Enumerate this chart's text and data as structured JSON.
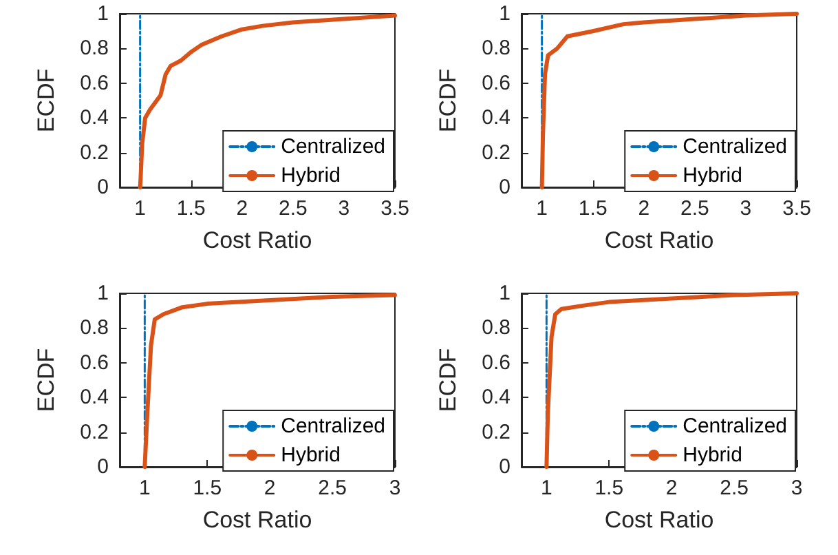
{
  "chart_data": [
    {
      "type": "line",
      "xlabel": "Cost Ratio",
      "ylabel": "ECDF",
      "xlim": [
        0.8,
        3.5
      ],
      "ylim": [
        0,
        1
      ],
      "xticks": [
        1,
        1.5,
        2,
        2.5,
        3,
        3.5
      ],
      "yticks": [
        0,
        0.2,
        0.4,
        0.6,
        0.8,
        1
      ],
      "legend": "bottom right",
      "grid": false,
      "series": [
        {
          "name": "Centralized",
          "color": "#0072bd",
          "line_style": "dashed",
          "x": [
            1,
            1
          ],
          "values": [
            0,
            1
          ]
        },
        {
          "name": "Hybrid",
          "color": "#d95319",
          "line_style": "solid",
          "x": [
            1,
            1.005,
            1.02,
            1.05,
            1.1,
            1.2,
            1.25,
            1.3,
            1.4,
            1.5,
            1.6,
            1.8,
            2,
            2.2,
            2.5,
            3,
            3.5
          ],
          "values": [
            0,
            0.05,
            0.25,
            0.4,
            0.45,
            0.53,
            0.65,
            0.7,
            0.73,
            0.78,
            0.82,
            0.87,
            0.91,
            0.93,
            0.95,
            0.97,
            0.99
          ]
        }
      ]
    },
    {
      "type": "line",
      "xlabel": "Cost Ratio",
      "ylabel": "ECDF",
      "xlim": [
        0.8,
        3.5
      ],
      "ylim": [
        0,
        1
      ],
      "xticks": [
        1,
        1.5,
        2,
        2.5,
        3,
        3.5
      ],
      "yticks": [
        0,
        0.2,
        0.4,
        0.6,
        0.8,
        1
      ],
      "legend": "bottom right",
      "grid": false,
      "series": [
        {
          "name": "Centralized",
          "color": "#0072bd",
          "line_style": "dashed",
          "x": [
            1,
            1
          ],
          "values": [
            0,
            1
          ]
        },
        {
          "name": "Hybrid",
          "color": "#d95319",
          "line_style": "solid",
          "x": [
            1,
            1.01,
            1.03,
            1.06,
            1.15,
            1.25,
            1.5,
            1.8,
            2,
            2.5,
            3,
            3.5
          ],
          "values": [
            0,
            0.3,
            0.65,
            0.76,
            0.8,
            0.87,
            0.9,
            0.94,
            0.95,
            0.97,
            0.99,
            1
          ]
        }
      ]
    },
    {
      "type": "line",
      "xlabel": "Cost Ratio",
      "ylabel": "ECDF",
      "xlim": [
        0.8,
        3
      ],
      "ylim": [
        0,
        1
      ],
      "xticks": [
        1,
        1.5,
        2,
        2.5,
        3
      ],
      "yticks": [
        0,
        0.2,
        0.4,
        0.6,
        0.8,
        1
      ],
      "legend": "bottom right",
      "grid": false,
      "series": [
        {
          "name": "Centralized",
          "color": "#0072bd",
          "line_style": "dashed",
          "x": [
            1,
            1
          ],
          "values": [
            0,
            1
          ]
        },
        {
          "name": "Hybrid",
          "color": "#d95319",
          "line_style": "solid",
          "x": [
            1,
            1.02,
            1.05,
            1.08,
            1.15,
            1.3,
            1.5,
            2,
            2.5,
            3
          ],
          "values": [
            0,
            0.3,
            0.7,
            0.85,
            0.88,
            0.92,
            0.94,
            0.96,
            0.98,
            0.99
          ]
        }
      ]
    },
    {
      "type": "line",
      "xlabel": "Cost Ratio",
      "ylabel": "ECDF",
      "xlim": [
        0.8,
        3
      ],
      "ylim": [
        0,
        1
      ],
      "xticks": [
        1,
        1.5,
        2,
        2.5,
        3
      ],
      "yticks": [
        0,
        0.2,
        0.4,
        0.6,
        0.8,
        1
      ],
      "legend": "bottom right",
      "grid": false,
      "series": [
        {
          "name": "Centralized",
          "color": "#0072bd",
          "line_style": "dashed",
          "x": [
            1,
            1
          ],
          "values": [
            0,
            1
          ]
        },
        {
          "name": "Hybrid",
          "color": "#d95319",
          "line_style": "solid",
          "x": [
            1,
            1.01,
            1.04,
            1.07,
            1.12,
            1.3,
            1.5,
            2,
            2.5,
            3
          ],
          "values": [
            0,
            0.3,
            0.75,
            0.88,
            0.91,
            0.93,
            0.95,
            0.97,
            0.99,
            1
          ]
        }
      ]
    }
  ]
}
